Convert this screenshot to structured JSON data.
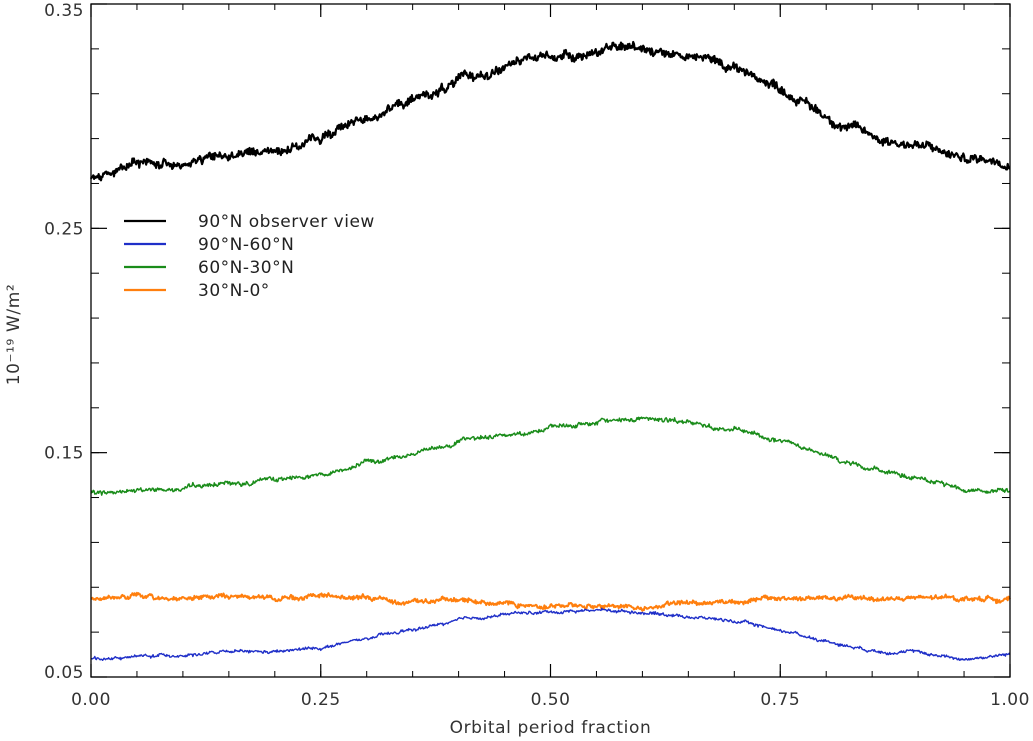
{
  "chart_data": {
    "type": "line",
    "title": "",
    "xlabel": "Orbital period fraction",
    "ylabel": "10⁻¹⁹ W/m²",
    "xlim": [
      0.0,
      1.0
    ],
    "ylim": [
      0.05,
      0.35
    ],
    "x_ticks": [
      {
        "value": 0.0,
        "label": "0.00"
      },
      {
        "value": 0.25,
        "label": "0.25"
      },
      {
        "value": 0.5,
        "label": "0.50"
      },
      {
        "value": 0.75,
        "label": "0.75"
      },
      {
        "value": 1.0,
        "label": "1.00"
      }
    ],
    "y_ticks": [
      {
        "value": 0.05,
        "label": "0.05"
      },
      {
        "value": 0.15,
        "label": "0.15"
      },
      {
        "value": 0.25,
        "label": "0.25"
      },
      {
        "value": 0.35,
        "label": "0.35"
      }
    ],
    "x_minor_step": 0.05,
    "y_minor_step": 0.02,
    "grid": false,
    "legend_position": "upper-left",
    "series": [
      {
        "name": "90°N observer view",
        "color": "#000000",
        "x": [
          0.0,
          0.05,
          0.1,
          0.15,
          0.2,
          0.25,
          0.3,
          0.35,
          0.4,
          0.45,
          0.5,
          0.55,
          0.6,
          0.65,
          0.7,
          0.75,
          0.8,
          0.85,
          0.9,
          0.95,
          1.0
        ],
        "y": [
          0.273,
          0.278,
          0.28,
          0.282,
          0.285,
          0.29,
          0.3,
          0.307,
          0.315,
          0.322,
          0.327,
          0.329,
          0.331,
          0.327,
          0.322,
          0.313,
          0.3,
          0.291,
          0.287,
          0.281,
          0.281
        ]
      },
      {
        "name": "90°N-60°N",
        "color": "#1f2fc8",
        "x": [
          0.0,
          0.05,
          0.1,
          0.15,
          0.2,
          0.25,
          0.3,
          0.35,
          0.4,
          0.45,
          0.5,
          0.55,
          0.6,
          0.65,
          0.7,
          0.75,
          0.8,
          0.85,
          0.9,
          0.95,
          1.0
        ],
        "y": [
          0.058,
          0.059,
          0.06,
          0.061,
          0.061,
          0.063,
          0.067,
          0.071,
          0.075,
          0.078,
          0.079,
          0.08,
          0.079,
          0.077,
          0.075,
          0.071,
          0.066,
          0.062,
          0.061,
          0.058,
          0.06
        ]
      },
      {
        "name": "60°N-30°N",
        "color": "#1a8c1a",
        "x": [
          0.0,
          0.05,
          0.1,
          0.15,
          0.2,
          0.25,
          0.3,
          0.35,
          0.4,
          0.45,
          0.5,
          0.55,
          0.6,
          0.65,
          0.7,
          0.75,
          0.8,
          0.85,
          0.9,
          0.95,
          1.0
        ],
        "y": [
          0.132,
          0.133,
          0.134,
          0.136,
          0.138,
          0.141,
          0.145,
          0.15,
          0.155,
          0.158,
          0.161,
          0.163,
          0.166,
          0.163,
          0.16,
          0.155,
          0.148,
          0.143,
          0.138,
          0.134,
          0.133
        ]
      },
      {
        "name": "30°N-0°",
        "color": "#ff7f0e",
        "x": [
          0.0,
          0.05,
          0.1,
          0.15,
          0.2,
          0.25,
          0.3,
          0.35,
          0.4,
          0.45,
          0.5,
          0.55,
          0.6,
          0.65,
          0.7,
          0.75,
          0.8,
          0.85,
          0.9,
          0.95,
          1.0
        ],
        "y": [
          0.085,
          0.086,
          0.085,
          0.086,
          0.085,
          0.086,
          0.085,
          0.084,
          0.084,
          0.083,
          0.082,
          0.082,
          0.081,
          0.083,
          0.084,
          0.085,
          0.085,
          0.085,
          0.085,
          0.085,
          0.085
        ]
      }
    ]
  }
}
